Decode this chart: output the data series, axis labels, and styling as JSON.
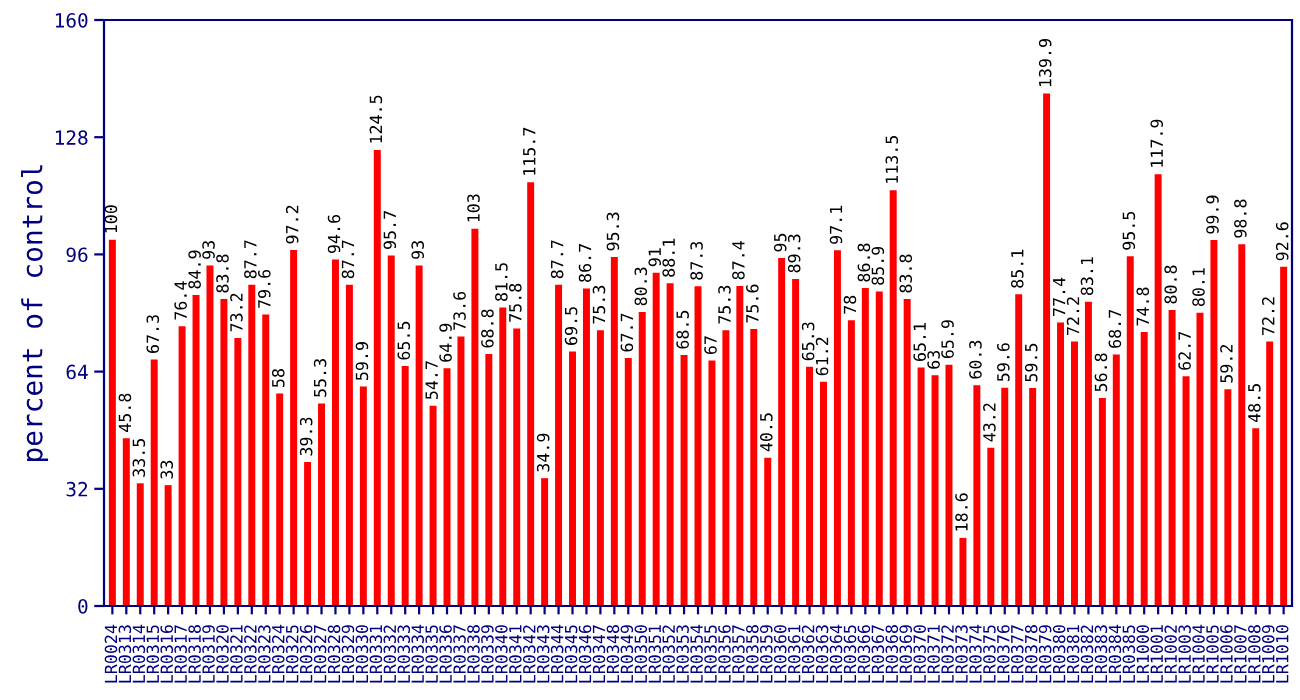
{
  "chart_data": {
    "type": "bar",
    "ylabel": "percent of control",
    "categories": [
      "LR0024",
      "LR0313",
      "LR0314",
      "LR0315",
      "LR0316",
      "LR0317",
      "LR0318",
      "LR0319",
      "LR0320",
      "LR0321",
      "LR0322",
      "LR0323",
      "LR0324",
      "LR0325",
      "LR0326",
      "LR0327",
      "LR0328",
      "LR0329",
      "LR0330",
      "LR0331",
      "LR0332",
      "LR0333",
      "LR0334",
      "LR0335",
      "LR0336",
      "LR0337",
      "LR0338",
      "LR0339",
      "LR0340",
      "LR0341",
      "LR0342",
      "LR0343",
      "LR0344",
      "LR0345",
      "LR0346",
      "LR0347",
      "LR0348",
      "LR0349",
      "LR0350",
      "LR0351",
      "LR0352",
      "LR0353",
      "LR0354",
      "LR0355",
      "LR0356",
      "LR0357",
      "LR0358",
      "LR0359",
      "LR0360",
      "LR0361",
      "LR0362",
      "LR0363",
      "LR0364",
      "LR0365",
      "LR0366",
      "LR0367",
      "LR0368",
      "LR0369",
      "LR0370",
      "LR0371",
      "LR0372",
      "LR0373",
      "LR0374",
      "LR0375",
      "LR0376",
      "LR0377",
      "LR0378",
      "LR0379",
      "LR0380",
      "LR0381",
      "LR0382",
      "LR0383",
      "LR0384",
      "LR0385",
      "LR1000",
      "LR1001",
      "LR1002",
      "LR1003",
      "LR1004",
      "LR1005",
      "LR1006",
      "LR1007",
      "LR1008",
      "LR1009",
      "LR1010"
    ],
    "values": [
      100,
      45.8,
      33.5,
      67.3,
      33,
      76.4,
      84.9,
      93,
      83.8,
      73.2,
      87.7,
      79.6,
      58,
      97.2,
      39.3,
      55.3,
      94.6,
      87.7,
      59.9,
      124.5,
      95.7,
      65.5,
      93,
      54.7,
      64.9,
      73.6,
      103,
      68.8,
      81.5,
      75.8,
      115.7,
      34.9,
      87.7,
      69.5,
      86.7,
      75.3,
      95.3,
      67.7,
      80.3,
      91,
      88.1,
      68.5,
      87.3,
      67,
      75.3,
      87.4,
      75.6,
      40.5,
      95,
      89.3,
      65.3,
      61.2,
      97.1,
      78,
      86.8,
      85.9,
      113.5,
      83.8,
      65.1,
      63,
      65.9,
      18.6,
      60.3,
      43.2,
      59.6,
      85.1,
      59.5,
      139.9,
      77.4,
      72.2,
      83.1,
      56.8,
      68.7,
      95.5,
      74.8,
      117.9,
      80.8,
      62.7,
      80.1,
      99.9,
      59.2,
      98.8,
      48.5,
      72.2,
      92.6
    ],
    "color": "#ff0000",
    "ylim": [
      0,
      160
    ],
    "yticks": [
      0,
      32,
      64,
      96,
      128,
      160
    ],
    "data_labels": true,
    "grid": false,
    "legend": false
  }
}
